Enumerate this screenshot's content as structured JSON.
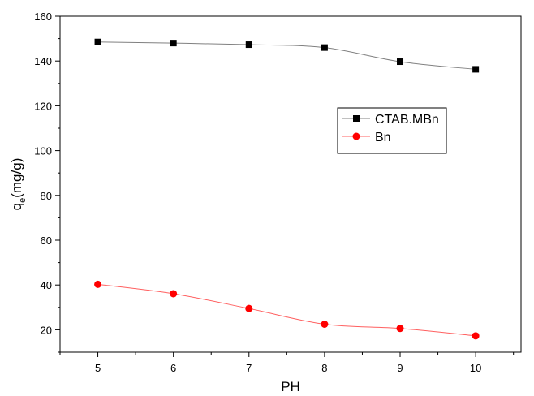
{
  "chart_data": {
    "type": "line",
    "xlabel": "PH",
    "ylabel_main": "q",
    "ylabel_sub": "e",
    "ylabel_unit": "(mg/g)",
    "xlim": [
      4.5,
      10.6
    ],
    "ylim": [
      10,
      160
    ],
    "x_ticks": [
      5,
      6,
      7,
      8,
      9,
      10
    ],
    "y_ticks": [
      20,
      40,
      60,
      80,
      100,
      120,
      140,
      160
    ],
    "legend_position": "upper-right",
    "series": [
      {
        "name": "CTAB.MBn",
        "marker": "square",
        "color": "#000000",
        "line_color": "#808080",
        "x": [
          5,
          6,
          7,
          8,
          9,
          10
        ],
        "values": [
          148.5,
          148.0,
          147.3,
          146.0,
          139.7,
          136.3
        ]
      },
      {
        "name": "Bn",
        "marker": "circle",
        "color": "#ff0000",
        "line_color": "#ff6060",
        "x": [
          5,
          6,
          7,
          8,
          9,
          10
        ],
        "values": [
          40.3,
          36.1,
          29.5,
          22.5,
          20.6,
          17.3
        ]
      }
    ]
  }
}
